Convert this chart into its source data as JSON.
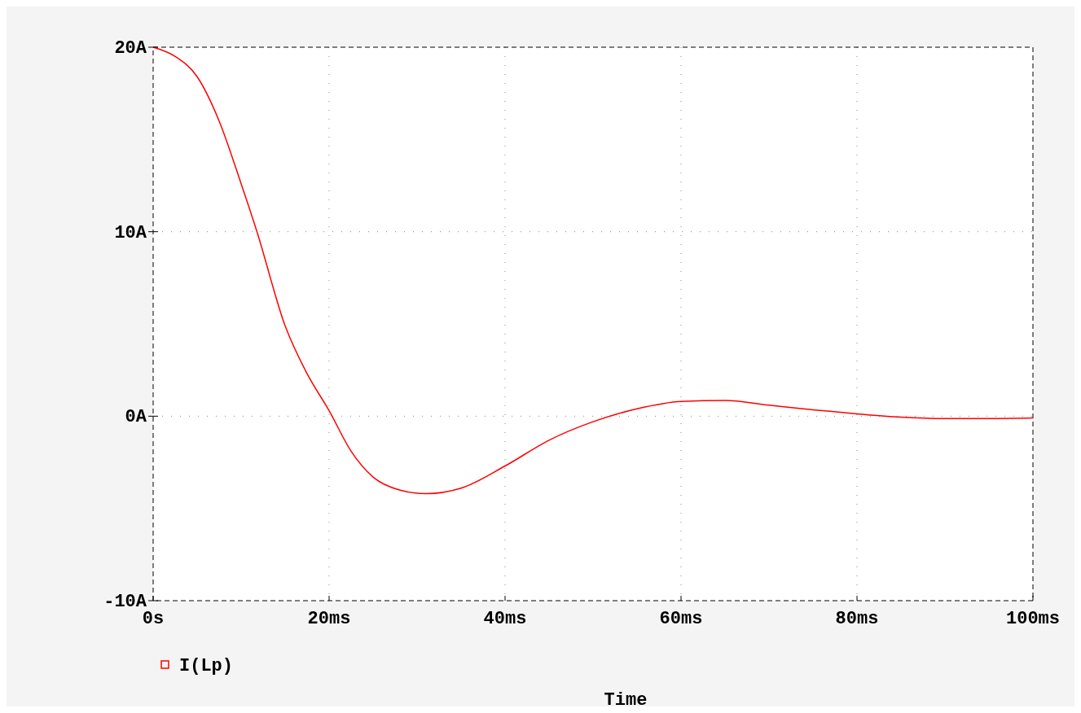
{
  "chart_data": {
    "type": "line",
    "xlabel": "Time",
    "x": [
      0,
      2.5,
      5,
      7.5,
      10,
      11.8,
      15,
      17.5,
      20,
      22.5,
      25,
      28,
      31,
      35,
      40,
      45,
      50,
      55,
      60,
      65,
      70,
      75,
      80,
      85,
      90,
      95,
      100
    ],
    "series": [
      {
        "name": "I(Lp)",
        "color": "#ff0000",
        "values": [
          20,
          19.5,
          18.4,
          16,
          12.6,
          10,
          4.9,
          2.3,
          0.3,
          -1.9,
          -3.3,
          -4,
          -4.2,
          -3.9,
          -2.7,
          -1.3,
          -0.3,
          0.4,
          0.8,
          0.85,
          0.6,
          0.35,
          0.13,
          -0.05,
          -0.13,
          -0.13,
          -0.1
        ]
      }
    ],
    "xlim": [
      0,
      100
    ],
    "xticks": [
      {
        "value": 0,
        "label": "0s"
      },
      {
        "value": 20,
        "label": "20ms"
      },
      {
        "value": 40,
        "label": "40ms"
      },
      {
        "value": 60,
        "label": "60ms"
      },
      {
        "value": 80,
        "label": "80ms"
      },
      {
        "value": 100,
        "label": "100ms"
      }
    ],
    "ylim": [
      -10,
      20
    ],
    "yticks": [
      {
        "value": -10,
        "label": "-10A"
      },
      {
        "value": 0,
        "label": "0A"
      },
      {
        "value": 10,
        "label": "10A"
      },
      {
        "value": 20,
        "label": "20A"
      }
    ],
    "grid": true,
    "legend": "bottom left",
    "marker": "none",
    "line_style": "solid"
  }
}
